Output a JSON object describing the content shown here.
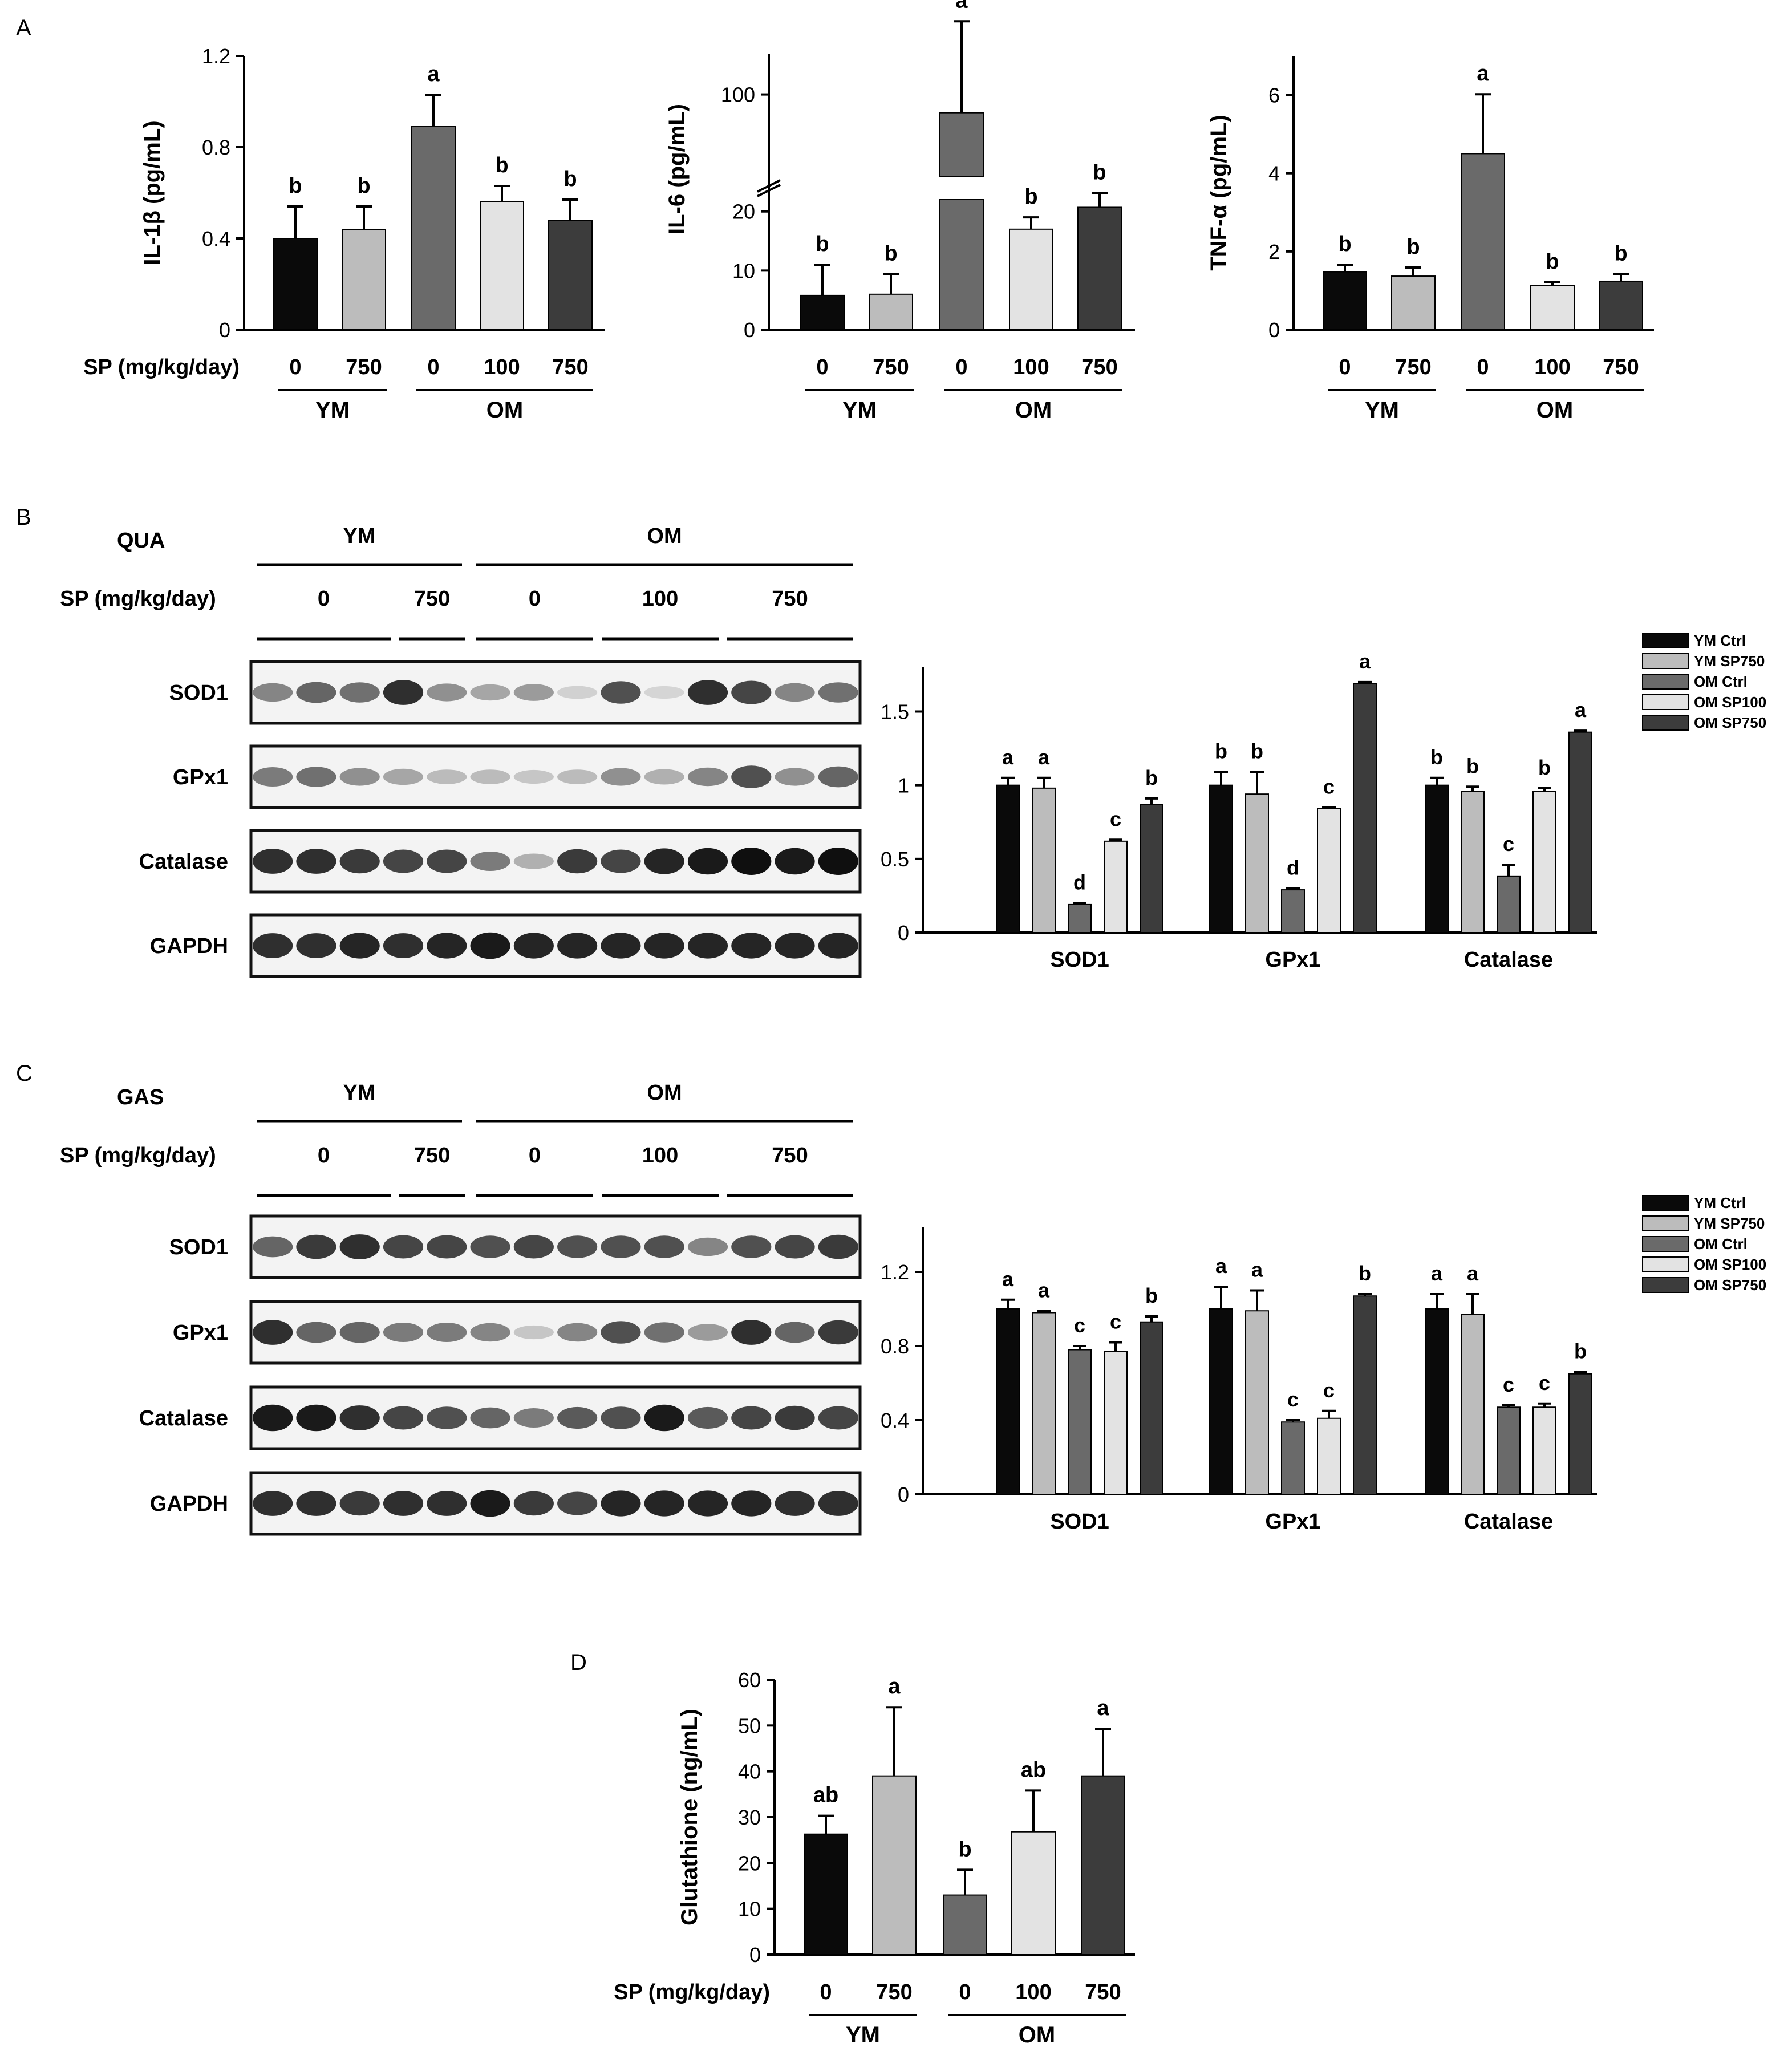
{
  "panels": {
    "A": "A",
    "B": "B",
    "C": "C",
    "D": "D"
  },
  "colors": {
    "YM_0": "#0a0a0a",
    "YM_750": "#bcbcbc",
    "OM_0": "#6a6a6a",
    "OM_100": "#e3e3e3",
    "OM_750": "#3c3c3c",
    "blot_frame": "#111111"
  },
  "group_axis": {
    "sp_label": "SP (mg/kg/day)",
    "doses": [
      "0",
      "750",
      "0",
      "100",
      "750"
    ],
    "groups": [
      "YM",
      "OM"
    ]
  },
  "chart_data": [
    {
      "id": "A1",
      "type": "bar",
      "categories": [
        "YM 0",
        "YM 750",
        "OM 0",
        "OM 100",
        "OM 750"
      ],
      "values": [
        0.4,
        0.44,
        0.89,
        0.56,
        0.48
      ],
      "errors": [
        0.14,
        0.1,
        0.14,
        0.07,
        0.09
      ],
      "letters": [
        "b",
        "b",
        "a",
        "b",
        "b"
      ],
      "ylabel": "IL-1β (pg/mL)",
      "ylim": [
        0,
        1.2
      ],
      "yticks": [
        0,
        0.4,
        0.8,
        1.2
      ],
      "ytick_labels": [
        "0",
        "0.4",
        "0.8",
        "1.2"
      ]
    },
    {
      "id": "A2",
      "type": "bar",
      "broken_axis": true,
      "categories": [
        "YM 0",
        "YM 750",
        "OM 0",
        "OM 100",
        "OM 750"
      ],
      "values": [
        5.8,
        6,
        90,
        17,
        20.7
      ],
      "errors": [
        5.2,
        3.4,
        50,
        2,
        2.4
      ],
      "letters": [
        "b",
        "b",
        "a",
        "b",
        "b"
      ],
      "ylabel": "IL-6 (pg/mL)",
      "lower_ylim": [
        0,
        22
      ],
      "upper_ylim": [
        55,
        122
      ],
      "yticks": [
        0,
        10,
        20,
        100
      ],
      "ytick_labels": [
        "0",
        "10",
        "20",
        "100"
      ]
    },
    {
      "id": "A3",
      "type": "bar",
      "categories": [
        "YM 0",
        "YM 750",
        "OM 0",
        "OM 100",
        "OM 750"
      ],
      "values": [
        1.48,
        1.37,
        4.5,
        1.13,
        1.24
      ],
      "errors": [
        0.18,
        0.22,
        1.52,
        0.08,
        0.18
      ],
      "letters": [
        "b",
        "b",
        "a",
        "b",
        "b"
      ],
      "ylabel": "TNF-α (pg/mL)",
      "ylim": [
        0,
        7
      ],
      "yticks": [
        0,
        2,
        4,
        6
      ],
      "ytick_labels": [
        "0",
        "2",
        "4",
        "6"
      ]
    },
    {
      "id": "B",
      "type": "bar",
      "tissue": "QUA",
      "categories": [
        "SOD1",
        "GPx1",
        "Catalase"
      ],
      "series": [
        {
          "name": "YM Ctrl",
          "values": [
            1.0,
            1.0,
            1.0
          ],
          "errors": [
            0.05,
            0.09,
            0.05
          ],
          "letters": [
            "a",
            "b",
            "b"
          ]
        },
        {
          "name": "YM SP750",
          "values": [
            0.98,
            0.94,
            0.96
          ],
          "errors": [
            0.07,
            0.15,
            0.03
          ],
          "letters": [
            "a",
            "b",
            "b"
          ]
        },
        {
          "name": "OM Ctrl",
          "values": [
            0.19,
            0.29,
            0.38
          ],
          "errors": [
            0.01,
            0.01,
            0.08
          ],
          "letters": [
            "d",
            "d",
            "c"
          ]
        },
        {
          "name": "OM SP100",
          "values": [
            0.62,
            0.84,
            0.96
          ],
          "errors": [
            0.01,
            0.01,
            0.02
          ],
          "letters": [
            "c",
            "c",
            "b"
          ]
        },
        {
          "name": "OM SP750",
          "values": [
            0.87,
            1.69,
            1.36
          ],
          "errors": [
            0.04,
            0.01,
            0.01
          ],
          "letters": [
            "b",
            "a",
            "a"
          ]
        }
      ],
      "ylim": [
        0,
        1.8
      ],
      "yticks": [
        0,
        0.5,
        1,
        1.5
      ],
      "ytick_labels": [
        "0",
        "0.5",
        "1",
        "1.5"
      ]
    },
    {
      "id": "C",
      "type": "bar",
      "tissue": "GAS",
      "categories": [
        "SOD1",
        "GPx1",
        "Catalase"
      ],
      "series": [
        {
          "name": "YM Ctrl",
          "values": [
            1.0,
            1.0,
            1.0
          ],
          "errors": [
            0.05,
            0.12,
            0.08
          ],
          "letters": [
            "a",
            "a",
            "a"
          ]
        },
        {
          "name": "YM SP750",
          "values": [
            0.98,
            0.99,
            0.97
          ],
          "errors": [
            0.01,
            0.11,
            0.11
          ],
          "letters": [
            "a",
            "a",
            "a"
          ]
        },
        {
          "name": "OM Ctrl",
          "values": [
            0.78,
            0.39,
            0.47
          ],
          "errors": [
            0.02,
            0.01,
            0.01
          ],
          "letters": [
            "c",
            "c",
            "c"
          ]
        },
        {
          "name": "OM SP100",
          "values": [
            0.77,
            0.41,
            0.47
          ],
          "errors": [
            0.05,
            0.04,
            0.02
          ],
          "letters": [
            "c",
            "c",
            "c"
          ]
        },
        {
          "name": "OM SP750",
          "values": [
            0.93,
            1.07,
            0.65
          ],
          "errors": [
            0.03,
            0.01,
            0.01
          ],
          "letters": [
            "b",
            "b",
            "b"
          ]
        }
      ],
      "ylim": [
        0,
        1.44
      ],
      "yticks": [
        0,
        0.4,
        0.8,
        1.2
      ],
      "ytick_labels": [
        "0",
        "0.4",
        "0.8",
        "1.2"
      ]
    },
    {
      "id": "D",
      "type": "bar",
      "categories": [
        "YM 0",
        "YM 750",
        "OM 0",
        "OM 100",
        "OM 750"
      ],
      "values": [
        26.3,
        39,
        13,
        26.8,
        39
      ],
      "errors": [
        4,
        15,
        5.5,
        9,
        10.3
      ],
      "letters": [
        "ab",
        "a",
        "b",
        "ab",
        "a"
      ],
      "ylabel": "Glutathione (ng/mL)",
      "ylim": [
        0,
        60
      ],
      "yticks": [
        0,
        10,
        20,
        30,
        40,
        50,
        60
      ],
      "ytick_labels": [
        "0",
        "10",
        "20",
        "30",
        "40",
        "50",
        "60"
      ]
    }
  ],
  "blots": {
    "B": {
      "tissue": "QUA",
      "groups": [
        "YM",
        "OM"
      ],
      "sp_label": "SP (mg/kg/day)",
      "doses": [
        "0",
        "750",
        "0",
        "100",
        "750"
      ],
      "rows": [
        {
          "name": "SOD1",
          "intensity": [
            0.45,
            0.6,
            0.55,
            0.85,
            0.4,
            0.3,
            0.35,
            0.1,
            0.7,
            0.08,
            0.85,
            0.75,
            0.45,
            0.55
          ]
        },
        {
          "name": "GPx1",
          "intensity": [
            0.5,
            0.55,
            0.4,
            0.3,
            0.2,
            0.2,
            0.15,
            0.2,
            0.4,
            0.25,
            0.45,
            0.7,
            0.4,
            0.6
          ]
        },
        {
          "name": "Catalase",
          "intensity": [
            0.85,
            0.85,
            0.8,
            0.75,
            0.75,
            0.5,
            0.25,
            0.8,
            0.75,
            0.9,
            0.95,
            1.0,
            0.95,
            1.0
          ]
        },
        {
          "name": "GAPDH",
          "intensity": [
            0.85,
            0.85,
            0.9,
            0.85,
            0.9,
            0.95,
            0.9,
            0.9,
            0.9,
            0.9,
            0.9,
            0.9,
            0.9,
            0.9
          ]
        }
      ]
    },
    "C": {
      "tissue": "GAS",
      "groups": [
        "YM",
        "OM"
      ],
      "sp_label": "SP (mg/kg/day)",
      "doses": [
        "0",
        "750",
        "0",
        "100",
        "750"
      ],
      "rows": [
        {
          "name": "SOD1",
          "intensity": [
            0.6,
            0.8,
            0.85,
            0.75,
            0.75,
            0.7,
            0.75,
            0.7,
            0.7,
            0.7,
            0.45,
            0.7,
            0.75,
            0.8
          ]
        },
        {
          "name": "GPx1",
          "intensity": [
            0.85,
            0.6,
            0.6,
            0.5,
            0.5,
            0.45,
            0.15,
            0.45,
            0.7,
            0.55,
            0.35,
            0.85,
            0.6,
            0.8
          ]
        },
        {
          "name": "Catalase",
          "intensity": [
            0.95,
            0.95,
            0.85,
            0.75,
            0.7,
            0.6,
            0.5,
            0.65,
            0.7,
            0.95,
            0.65,
            0.75,
            0.8,
            0.75
          ]
        },
        {
          "name": "GAPDH",
          "intensity": [
            0.85,
            0.85,
            0.8,
            0.85,
            0.85,
            0.95,
            0.8,
            0.75,
            0.9,
            0.9,
            0.9,
            0.9,
            0.85,
            0.85
          ]
        }
      ]
    }
  }
}
